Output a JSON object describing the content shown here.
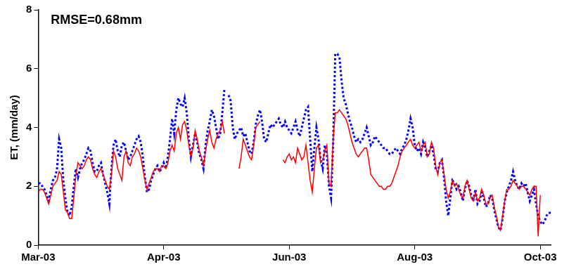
{
  "chart_data": {
    "type": "line",
    "y_label": "ET, (mm/day)",
    "annotation": "RMSE=0.68mm",
    "ylim": [
      0,
      8
    ],
    "yticks": [
      0,
      2,
      4,
      6,
      8
    ],
    "grid": false,
    "categories": [
      "Mar-03",
      null,
      null,
      null,
      null,
      null,
      null,
      null,
      null,
      null,
      null,
      null,
      null,
      null,
      null,
      null,
      null,
      null,
      null,
      null,
      null,
      null,
      null,
      null,
      null,
      null,
      null,
      null,
      null,
      null,
      null,
      null,
      null,
      null,
      null,
      null,
      null,
      null,
      null,
      null,
      null,
      null,
      null,
      null,
      null,
      null,
      null,
      null,
      null,
      null,
      null,
      null,
      null,
      null,
      null,
      null,
      null,
      null,
      null,
      null,
      "Apr-03",
      null,
      null,
      null,
      null,
      null,
      null,
      null,
      null,
      null,
      null,
      null,
      null,
      null,
      null,
      null,
      null,
      null,
      null,
      null,
      null,
      null,
      null,
      null,
      null,
      null,
      null,
      null,
      null,
      null,
      null,
      null,
      null,
      null,
      null,
      null,
      null,
      null,
      null,
      null,
      null,
      null,
      null,
      null,
      null,
      null,
      null,
      null,
      null,
      null,
      null,
      null,
      null,
      null,
      null,
      null,
      null,
      null,
      null,
      null,
      "Jun-03",
      null,
      null,
      null,
      null,
      null,
      null,
      null,
      null,
      null,
      null,
      null,
      null,
      null,
      null,
      null,
      null,
      null,
      null,
      null,
      null,
      null,
      null,
      null,
      null,
      null,
      null,
      null,
      null,
      null,
      null,
      null,
      null,
      null,
      null,
      null,
      null,
      null,
      null,
      null,
      null,
      null,
      null,
      null,
      null,
      null,
      null,
      null,
      null,
      null,
      null,
      null,
      null,
      null,
      null,
      null,
      null,
      null,
      null,
      null,
      "Aug-03",
      null,
      null,
      null,
      null,
      null,
      null,
      null,
      null,
      null,
      null,
      null,
      null,
      null,
      null,
      null,
      null,
      null,
      null,
      null,
      null,
      null,
      null,
      null,
      null,
      null,
      null,
      null,
      null,
      null,
      null,
      null,
      null,
      null,
      null,
      null,
      null,
      null,
      null,
      null,
      null,
      null,
      null,
      null,
      null,
      null,
      null,
      null,
      null,
      null,
      null,
      null,
      null,
      null,
      null,
      null,
      null,
      null,
      null,
      null,
      "Oct-03",
      null,
      null,
      null,
      null,
      null
    ],
    "series": [
      {
        "color": "#ff0000",
        "line_style": "solid",
        "values": [
          1.8,
          1.9,
          1.9,
          1.8,
          1.6,
          1.4,
          1.7,
          2.0,
          2.1,
          2.2,
          2.5,
          2.4,
          1.8,
          1.2,
          1.1,
          0.9,
          0.9,
          1.6,
          2.4,
          2.8,
          2.7,
          2.6,
          2.7,
          2.9,
          3.0,
          2.9,
          2.6,
          2.4,
          2.3,
          2.5,
          2.6,
          2.4,
          2.2,
          2.0,
          1.9,
          2.4,
          3.2,
          3.0,
          2.6,
          2.4,
          2.2,
          3.0,
          3.2,
          2.8,
          2.7,
          3.0,
          3.1,
          3.3,
          3.2,
          3.0,
          2.6,
          2.2,
          1.9,
          2.1,
          2.3,
          2.5,
          2.6,
          2.6,
          2.5,
          2.7,
          2.7,
          2.6,
          2.8,
          3.2,
          3.4,
          3.2,
          3.8,
          4.0,
          3.6,
          4.1,
          4.2,
          3.9,
          3.4,
          3.0,
          3.3,
          3.9,
          3.6,
          3.2,
          3.0,
          2.7,
          3.2,
          3.6,
          3.9,
          3.5,
          3.3,
          3.6,
          3.8,
          3.9,
          4.2,
          3.8,
          null,
          null,
          null,
          null,
          null,
          null,
          2.6,
          3.0,
          3.6,
          3.4,
          3.2,
          3.0,
          2.9,
          3.4,
          4.0,
          4.1,
          4.2,
          null,
          null,
          null,
          null,
          null,
          null,
          null,
          null,
          null,
          null,
          2.9,
          2.8,
          3.0,
          3.1,
          2.9,
          3.0,
          2.8,
          3.3,
          3.1,
          2.9,
          3.0,
          3.4,
          2.8,
          2.2,
          1.8,
          2.6,
          3.3,
          3.4,
          2.8,
          2.9,
          3.2,
          3.4,
          2.1,
          2.0,
          3.6,
          4.5,
          4.5,
          4.6,
          4.5,
          4.4,
          4.3,
          4.1,
          3.8,
          3.5,
          3.3,
          3.1,
          3.0,
          3.1,
          3.2,
          3.3,
          3.3,
          2.9,
          2.4,
          2.3,
          2.2,
          2.1,
          2.0,
          2.0,
          1.9,
          1.9,
          2.0,
          2.0,
          2.1,
          2.3,
          2.5,
          2.7,
          3.0,
          3.2,
          3.3,
          3.4,
          3.5,
          3.6,
          3.4,
          3.3,
          3.4,
          3.5,
          3.2,
          3.4,
          3.5,
          3.0,
          3.1,
          3.5,
          3.3,
          2.7,
          2.4,
          2.8,
          2.9,
          2.4,
          1.9,
          1.6,
          1.8,
          2.2,
          2.0,
          2.1,
          1.9,
          1.7,
          1.6,
          2.0,
          2.2,
          1.9,
          1.6,
          1.5,
          1.8,
          1.5,
          1.6,
          1.9,
          1.7,
          1.4,
          1.4,
          1.6,
          1.7,
          1.3,
          1.0,
          0.6,
          0.5,
          1.0,
          1.5,
          1.9,
          1.9,
          2.0,
          2.2,
          2.1,
          2.0,
          1.9,
          2.0,
          2.0,
          1.9,
          1.8,
          1.7,
          1.9,
          2.0,
          2.0,
          0.3,
          1.7,
          null,
          null,
          null,
          null,
          null
        ]
      },
      {
        "color": "#0000ff",
        "line_style": "dotted",
        "values": [
          2.1,
          2.1,
          2.0,
          1.9,
          1.7,
          1.5,
          1.9,
          2.2,
          2.3,
          2.6,
          3.6,
          3.3,
          2.2,
          1.6,
          1.1,
          1.0,
          1.3,
          2.0,
          2.6,
          2.3,
          2.6,
          2.8,
          2.9,
          3.1,
          3.3,
          3.2,
          2.8,
          2.5,
          2.5,
          2.7,
          2.8,
          2.4,
          2.1,
          1.8,
          1.4,
          2.6,
          3.4,
          3.6,
          3.2,
          3.0,
          3.4,
          3.5,
          3.2,
          2.9,
          3.0,
          3.2,
          3.4,
          3.6,
          3.7,
          3.5,
          3.0,
          2.3,
          1.8,
          1.9,
          2.2,
          2.4,
          2.6,
          2.7,
          2.5,
          2.6,
          2.8,
          2.6,
          3.0,
          3.6,
          4.3,
          3.8,
          4.6,
          5.0,
          4.8,
          4.7,
          5.0,
          4.5,
          3.6,
          3.0,
          3.4,
          3.8,
          3.5,
          3.1,
          2.9,
          2.6,
          3.4,
          3.9,
          4.2,
          4.6,
          4.4,
          4.0,
          3.6,
          3.8,
          4.5,
          5.3,
          null,
          5.1,
          4.9,
          4.0,
          3.6,
          3.8,
          3.9,
          4.0,
          3.7,
          3.8,
          3.5,
          3.2,
          3.1,
          3.5,
          4.1,
          4.4,
          4.6,
          4.2,
          3.6,
          3.5,
          3.8,
          4.1,
          4.0,
          4.1,
          4.2,
          4.3,
          4.1,
          4.0,
          4.2,
          4.0,
          3.9,
          3.8,
          4.0,
          4.2,
          3.9,
          3.7,
          4.0,
          4.3,
          4.6,
          4.7,
          3.6,
          2.5,
          3.3,
          4.0,
          3.6,
          2.9,
          2.6,
          3.4,
          3.1,
          2.0,
          1.6,
          3.5,
          6.5,
          6.5,
          6.4,
          5.6,
          5.0,
          4.8,
          4.5,
          4.2,
          4.0,
          3.7,
          3.5,
          3.6,
          3.5,
          3.6,
          3.8,
          4.0,
          3.7,
          3.4,
          3.5,
          3.7,
          3.6,
          3.5,
          3.4,
          3.3,
          3.3,
          3.2,
          3.1,
          3.1,
          3.2,
          3.3,
          3.2,
          3.1,
          3.3,
          3.4,
          3.6,
          3.9,
          4.3,
          4.0,
          3.4,
          3.2,
          3.3,
          3.1,
          3.5,
          3.3,
          3.0,
          3.2,
          3.4,
          3.1,
          2.6,
          2.5,
          2.8,
          2.9,
          2.3,
          1.5,
          1.0,
          1.6,
          2.2,
          2.1,
          1.9,
          2.0,
          1.8,
          1.5,
          1.9,
          2.2,
          2.0,
          1.7,
          1.5,
          1.9,
          1.4,
          1.5,
          1.8,
          1.6,
          1.3,
          1.4,
          1.7,
          1.6,
          1.2,
          0.9,
          0.6,
          0.5,
          0.9,
          1.5,
          1.8,
          2.0,
          2.2,
          2.5,
          2.2,
          2.0,
          1.9,
          2.1,
          2.0,
          2.1,
          1.8,
          1.5,
          1.7,
          1.9,
          1.4,
          1.0,
          0.8,
          0.7,
          0.8,
          1.0,
          1.1,
          1.1
        ]
      }
    ]
  }
}
